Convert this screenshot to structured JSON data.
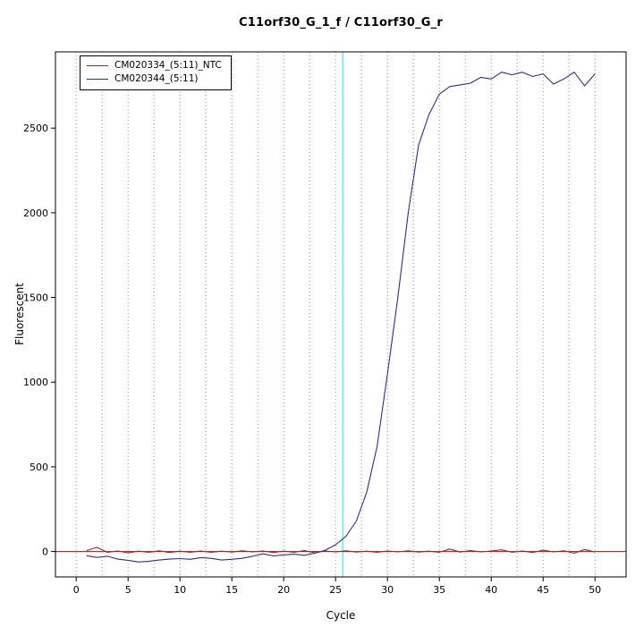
{
  "chart_data": {
    "type": "line",
    "title": "C11orf30_G_1_f / C11orf30_G_r",
    "xlabel": "Cycle",
    "ylabel": "Fluorescent",
    "xlim": [
      -2,
      53
    ],
    "ylim": [
      -150,
      2950
    ],
    "xticks": [
      0,
      5,
      10,
      15,
      20,
      25,
      30,
      35,
      40,
      45,
      50
    ],
    "yticks": [
      0,
      500,
      1000,
      1500,
      2000,
      2500
    ],
    "grid": {
      "vertical_every": 2.5,
      "style": "dotted",
      "color": "#9a9a9a"
    },
    "threshold_vline": {
      "x": 25.7,
      "color": "#6fe9f5"
    },
    "baseline_hline": {
      "y": 0,
      "color": "#cc0000"
    },
    "legend_position": "top-left",
    "series": [
      {
        "name": "CM020334_(5:11)_NTC",
        "color": "#a82222",
        "x": [
          1,
          2,
          3,
          4,
          5,
          6,
          7,
          8,
          9,
          10,
          11,
          12,
          13,
          14,
          15,
          16,
          17,
          18,
          19,
          20,
          21,
          22,
          23,
          24,
          25,
          26,
          27,
          28,
          29,
          30,
          31,
          32,
          33,
          34,
          35,
          36,
          37,
          38,
          39,
          40,
          41,
          42,
          43,
          44,
          45,
          46,
          47,
          48,
          49,
          50
        ],
        "y": [
          5,
          25,
          -5,
          3,
          -8,
          2,
          -5,
          4,
          -6,
          2,
          -4,
          3,
          -5,
          2,
          -3,
          4,
          -2,
          3,
          -6,
          2,
          -4,
          5,
          -8,
          3,
          -2,
          4,
          -3,
          2,
          -5,
          3,
          -2,
          4,
          -3,
          2,
          -4,
          15,
          -3,
          5,
          -2,
          3,
          10,
          -4,
          3,
          -6,
          8,
          -2,
          4,
          -10,
          12,
          -3
        ]
      },
      {
        "name": "CM020344_(5:11)",
        "color": "#2e2e85",
        "x": [
          1,
          2,
          3,
          4,
          5,
          6,
          7,
          8,
          9,
          10,
          11,
          12,
          13,
          14,
          15,
          16,
          17,
          18,
          19,
          20,
          21,
          22,
          23,
          24,
          25,
          26,
          27,
          28,
          29,
          30,
          31,
          32,
          33,
          34,
          35,
          36,
          37,
          38,
          39,
          40,
          41,
          42,
          43,
          44,
          45,
          46,
          47,
          48,
          49,
          50
        ],
        "y": [
          -25,
          -35,
          -28,
          -45,
          -52,
          -62,
          -58,
          -50,
          -45,
          -42,
          -46,
          -36,
          -40,
          -50,
          -46,
          -40,
          -28,
          -14,
          -26,
          -20,
          -16,
          -22,
          -10,
          8,
          40,
          90,
          180,
          350,
          620,
          1050,
          1500,
          2000,
          2400,
          2580,
          2700,
          2745,
          2755,
          2765,
          2800,
          2790,
          2830,
          2815,
          2830,
          2805,
          2820,
          2760,
          2790,
          2830,
          2750,
          2820
        ]
      }
    ]
  }
}
